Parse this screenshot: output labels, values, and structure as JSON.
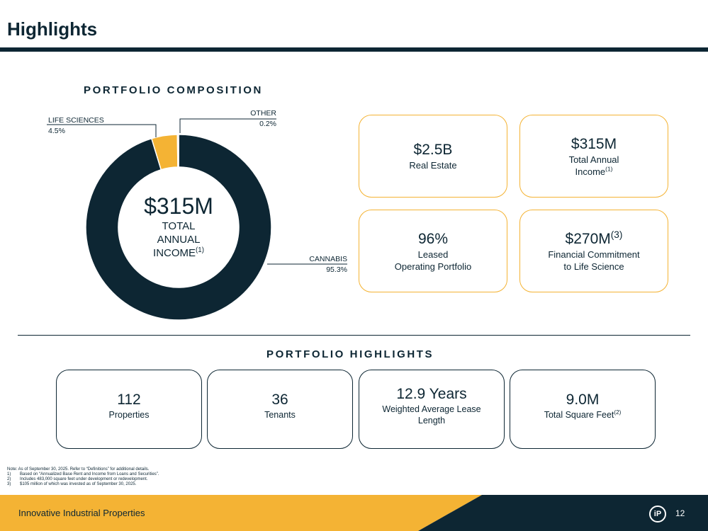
{
  "page": {
    "title": "Highlights"
  },
  "composition": {
    "heading": "PORTFOLIO COMPOSITION",
    "center_value": "$315M",
    "center_label_lines": [
      "TOTAL",
      "ANNUAL",
      "INCOME"
    ],
    "center_footnote": "(1)"
  },
  "chart_data": {
    "type": "pie",
    "variant": "donut",
    "categories": [
      "CANNABIS",
      "LIFE SCIENCES",
      "OTHER"
    ],
    "values": [
      95.3,
      4.5,
      0.2
    ],
    "labels": [
      "95.3%",
      "4.5%",
      "0.2%"
    ],
    "colors": [
      "#0d2633",
      "#f4b334",
      "#8a8a8a"
    ]
  },
  "kpis": [
    {
      "value": "$2.5B",
      "value_sup": "",
      "label_lines": [
        "Real Estate"
      ],
      "label_sup": ""
    },
    {
      "value": "$315M",
      "value_sup": "",
      "label_lines": [
        "Total Annual",
        "Income"
      ],
      "label_sup": "(1)"
    },
    {
      "value": "96%",
      "value_sup": "",
      "label_lines": [
        "Leased",
        "Operating Portfolio"
      ],
      "label_sup": ""
    },
    {
      "value": "$270M",
      "value_sup": "(3)",
      "label_lines": [
        "Financial Commitment",
        "to Life Science"
      ],
      "label_sup": ""
    }
  ],
  "highlights": {
    "heading": "PORTFOLIO HIGHLIGHTS",
    "items": [
      {
        "value": "112",
        "label_lines": [
          "Properties"
        ],
        "label_sup": ""
      },
      {
        "value": "36",
        "label_lines": [
          "Tenants"
        ],
        "label_sup": ""
      },
      {
        "value": "12.9 Years",
        "label_lines": [
          "Weighted Average Lease",
          "Length"
        ],
        "label_sup": ""
      },
      {
        "value": "9.0M",
        "label_lines": [
          "Total Square Feet"
        ],
        "label_sup": "(2)"
      }
    ]
  },
  "notes": {
    "intro": "Note: As of September 30, 2025. Refer to “Definitions” for additional details.",
    "items": [
      {
        "num": "1)",
        "text": "Based on “Annualized Base Rent and Income from Loans and Securities”."
      },
      {
        "num": "2)",
        "text": "Includes 483,000 square feet under development or redevelopment."
      },
      {
        "num": "3)",
        "text": "$105 million of which was invested as of September 30, 2025."
      }
    ]
  },
  "footer": {
    "brand": "Innovative Industrial Properties",
    "logo_text": "iP",
    "page_number": "12",
    "colors": {
      "gold": "#f4b334",
      "navy": "#0d2633"
    }
  }
}
